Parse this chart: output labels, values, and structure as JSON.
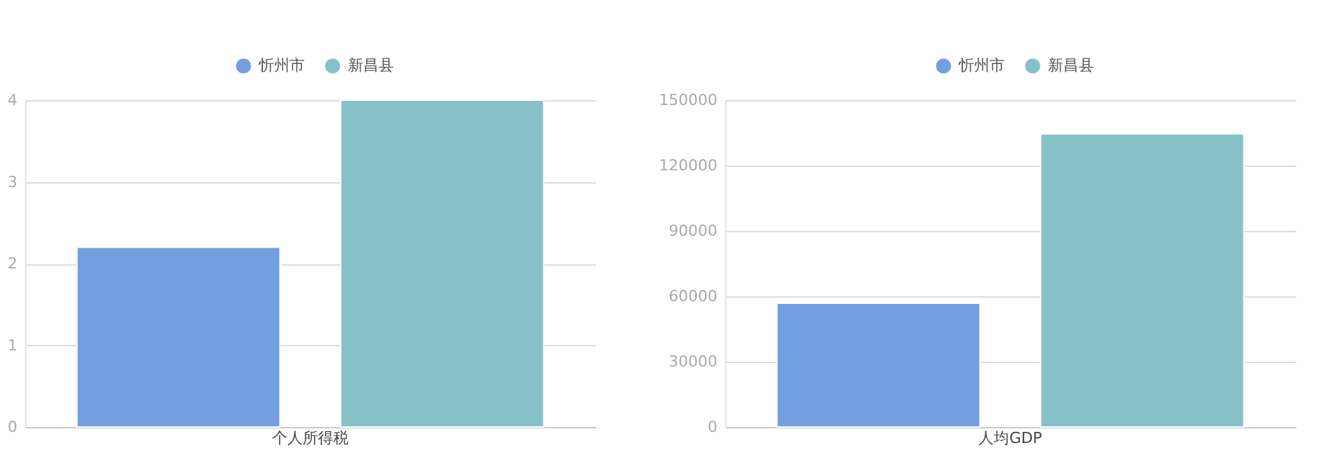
{
  "chart_data": [
    {
      "type": "bar",
      "categories": [
        "个人所得税"
      ],
      "series": [
        {
          "name": "忻州市",
          "color": "#739fe0",
          "values": [
            2.2
          ]
        },
        {
          "name": "新昌县",
          "color": "#86c1c8",
          "values": [
            4
          ]
        }
      ],
      "ylim": [
        0,
        4
      ],
      "yticks": [
        0,
        1,
        2,
        3,
        4
      ],
      "grid": "y",
      "legend": "top"
    },
    {
      "type": "bar",
      "categories": [
        "人均GDP"
      ],
      "series": [
        {
          "name": "忻州市",
          "color": "#739fe0",
          "values": [
            56800
          ]
        },
        {
          "name": "新昌县",
          "color": "#86c1c8",
          "values": [
            134500
          ]
        }
      ],
      "ylim": [
        0,
        150000
      ],
      "yticks": [
        0,
        30000,
        60000,
        90000,
        120000,
        150000
      ],
      "grid": "y",
      "legend": "top"
    }
  ]
}
